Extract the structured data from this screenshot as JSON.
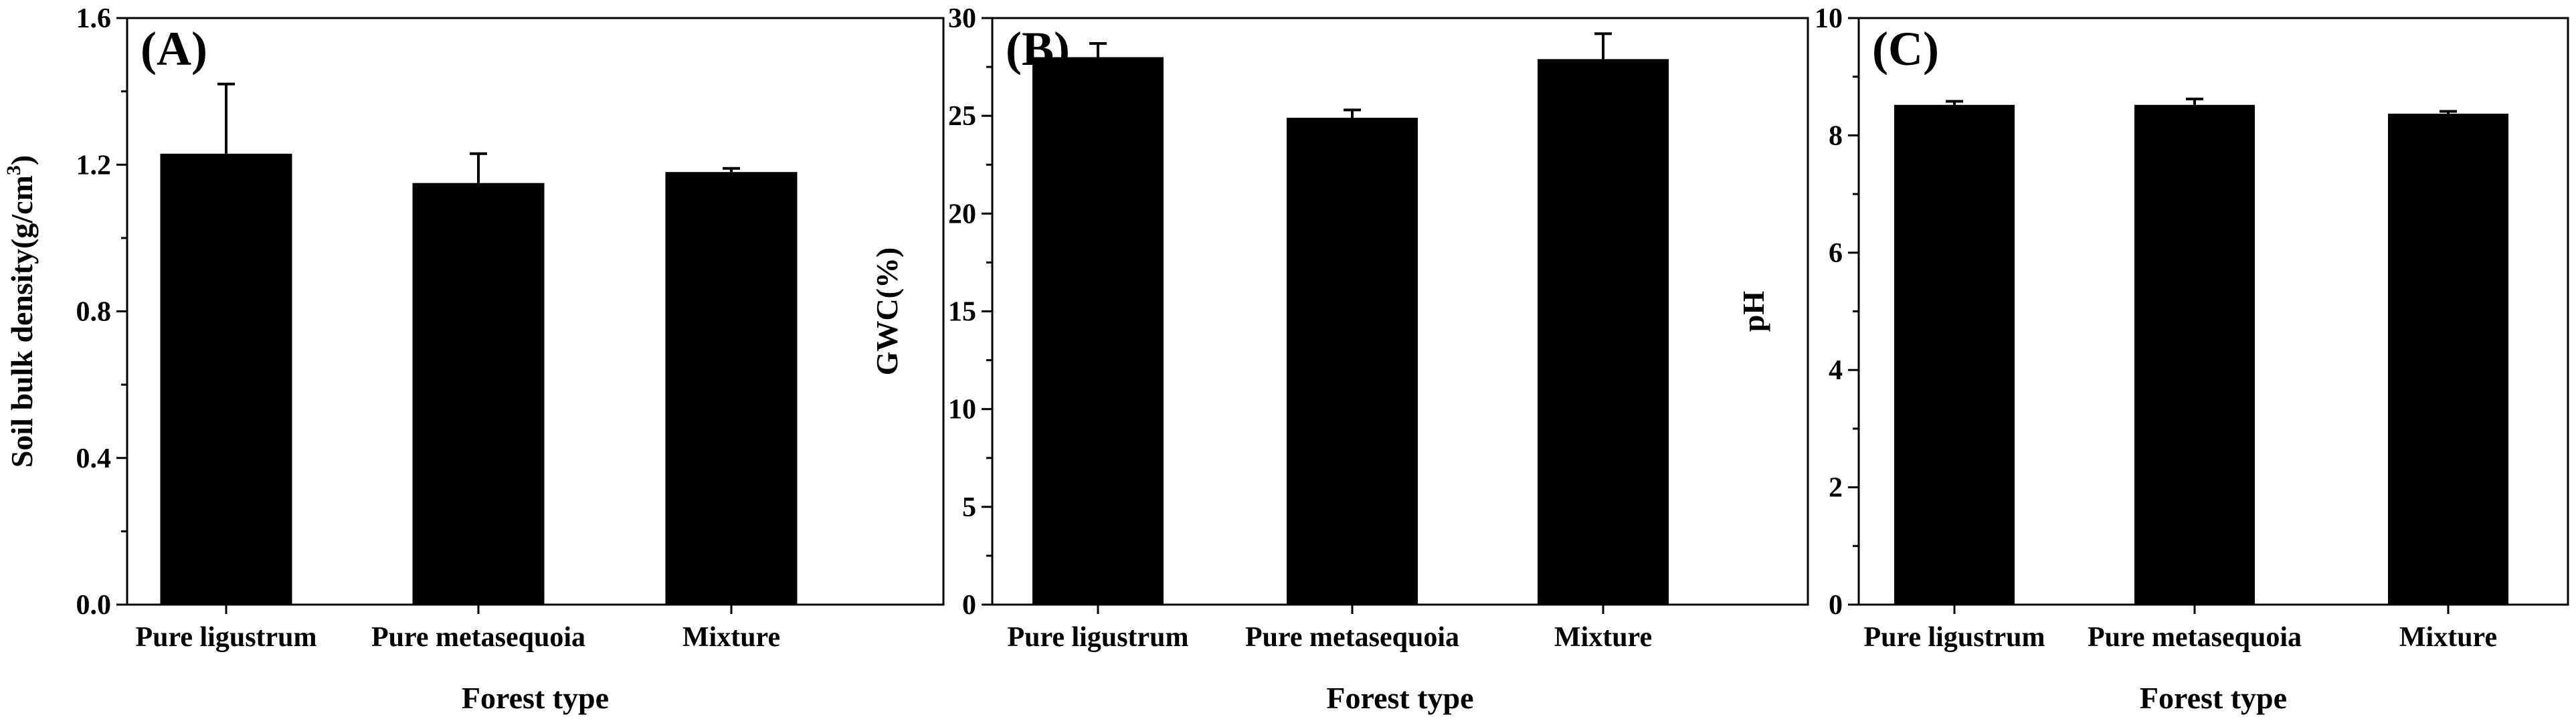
{
  "chart_data": [
    {
      "type": "bar",
      "panel_label": "(A)",
      "title": "",
      "categories": [
        "Pure ligustrum",
        "Pure metasequoia",
        "Mixture"
      ],
      "values": [
        1.23,
        1.15,
        1.18
      ],
      "errors": [
        0.19,
        0.08,
        0.01
      ],
      "xlabel": "Forest type",
      "ylabel": "Soil bulk density(g/cm",
      "ylabel_superscript": "3",
      "ylabel_suffix": ")",
      "ylim": [
        0,
        1.6
      ],
      "yticks": [
        0.0,
        0.4,
        0.8,
        1.2,
        1.6
      ],
      "ytick_labels": [
        "0.0",
        "0.4",
        "0.8",
        "1.2",
        "1.6"
      ],
      "bar_color": "#000000",
      "grid": false
    },
    {
      "type": "bar",
      "panel_label": "(B)",
      "title": "",
      "categories": [
        "Pure ligustrum",
        "Pure metasequoia",
        "Mixture"
      ],
      "values": [
        28.0,
        24.9,
        27.9
      ],
      "errors": [
        0.7,
        0.4,
        1.3
      ],
      "xlabel": "Forest type",
      "ylabel": "GWC(%)",
      "ylabel_superscript": "",
      "ylabel_suffix": "",
      "ylim": [
        0,
        30
      ],
      "yticks": [
        0,
        5,
        10,
        15,
        20,
        25,
        30
      ],
      "ytick_labels": [
        "0",
        "5",
        "10",
        "15",
        "20",
        "25",
        "30"
      ],
      "bar_color": "#000000",
      "grid": false
    },
    {
      "type": "bar",
      "panel_label": "(C)",
      "title": "",
      "categories": [
        "Pure ligustrum",
        "Pure metasequoia",
        "Mixture"
      ],
      "values": [
        8.52,
        8.52,
        8.37
      ],
      "errors": [
        0.06,
        0.1,
        0.04
      ],
      "xlabel": "Forest type",
      "ylabel": "pH",
      "ylabel_superscript": "",
      "ylabel_suffix": "",
      "ylim": [
        0,
        10
      ],
      "yticks": [
        0,
        2,
        4,
        6,
        8,
        10
      ],
      "ytick_labels": [
        "0",
        "2",
        "4",
        "6",
        "8",
        "10"
      ],
      "bar_color": "#000000",
      "grid": false
    }
  ]
}
